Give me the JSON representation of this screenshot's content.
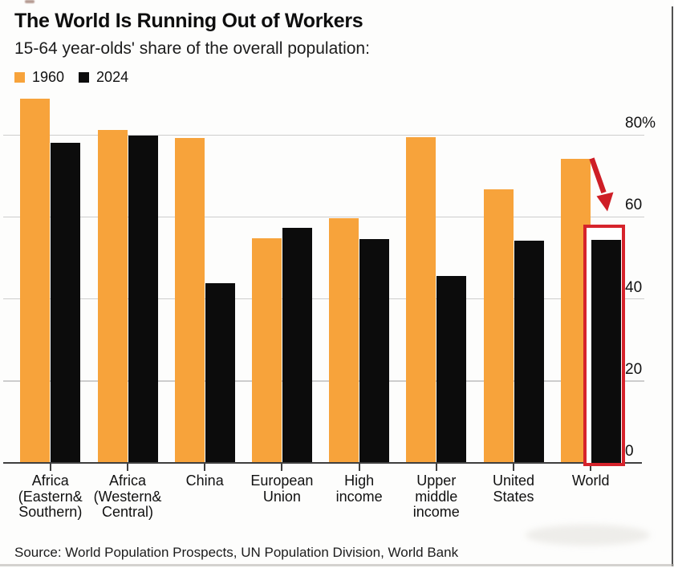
{
  "header": {
    "title": "The World Is Running Out of Workers",
    "subtitle": "15-64 year-olds' share of the overall population:"
  },
  "legend": [
    {
      "label": "1960",
      "color": "#F7A33B"
    },
    {
      "label": "2024",
      "color": "#0c0c0c"
    }
  ],
  "source": "Source: World Population Prospects, UN Population Division, World Bank",
  "colors": {
    "orange": "#F7A33B",
    "black": "#0c0c0c",
    "annotation_red": "#d6232b",
    "gridline": "#cdcdcd",
    "axis": "#3f3f3f",
    "text": "#111111"
  },
  "chart_data": {
    "type": "bar",
    "title": "The World Is Running Out of Workers",
    "subtitle": "15-64 year-olds' share of the overall population:",
    "categories": [
      "Africa (Eastern& Southern)",
      "Africa (Western& Central)",
      "China",
      "European Union",
      "High income",
      "Upper middle income",
      "United States",
      "World"
    ],
    "category_label_lines": [
      [
        "Africa",
        "(Eastern&",
        "Southern)"
      ],
      [
        "Africa",
        "(Western&",
        "Central)"
      ],
      [
        "China"
      ],
      [
        "European",
        "Union"
      ],
      [
        "High",
        "income"
      ],
      [
        "Upper",
        "middle",
        "income"
      ],
      [
        "United",
        "States"
      ],
      [
        "World"
      ]
    ],
    "series": [
      {
        "name": "1960",
        "color": "#F7A33B",
        "values": [
          88.8,
          81.2,
          79.3,
          54.8,
          59.7,
          79.5,
          66.7,
          74.2
        ]
      },
      {
        "name": "2024",
        "color": "#0c0c0c",
        "values": [
          78.1,
          79.8,
          43.9,
          57.3,
          54.6,
          45.7,
          54.3,
          54.5
        ]
      }
    ],
    "ylabel": "",
    "xlabel": "",
    "y_ticks": [
      80,
      60,
      40,
      20,
      0
    ],
    "y_tick_labels": [
      "80%",
      "60",
      "40",
      "20",
      "0"
    ],
    "ylim": [
      0,
      90
    ],
    "grid": true,
    "legend_position": "top-left",
    "annotation": {
      "type": "red-box-and-arrow",
      "target_category": "World",
      "target_series": "2024",
      "color": "#d6232b"
    }
  }
}
